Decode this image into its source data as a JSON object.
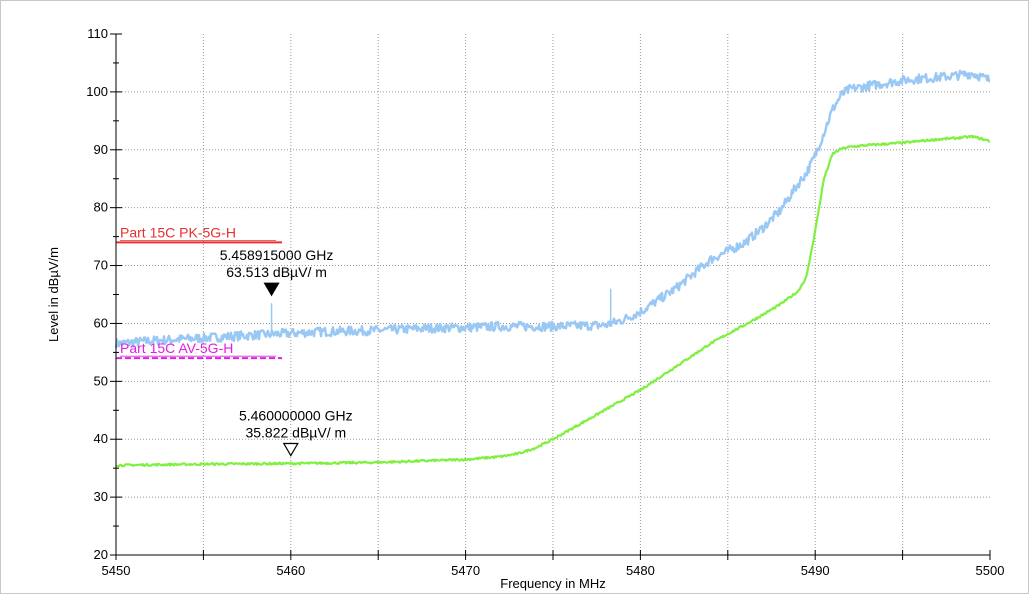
{
  "chart_data": {
    "type": "line",
    "xlabel": "Frequency in MHz",
    "ylabel": "Level in dBµV/m",
    "xlim": [
      5450,
      5500
    ],
    "ylim": [
      20,
      110
    ],
    "x_ticks": [
      5450,
      5455,
      5460,
      5465,
      5470,
      5475,
      5480,
      5485,
      5490,
      5495,
      5500
    ],
    "x_tick_labels": [
      "5450",
      "5460",
      "5470",
      "5480",
      "5490",
      "5500"
    ],
    "y_ticks": [
      20,
      30,
      40,
      50,
      60,
      70,
      80,
      90,
      100,
      110
    ],
    "grid": true,
    "series": [
      {
        "color": "#99c8f4",
        "style": "peak trace",
        "x": [
          5450,
          5452,
          5455,
          5458,
          5460,
          5462,
          5465,
          5468,
          5470,
          5472,
          5475,
          5478,
          5478.9,
          5480,
          5481,
          5482,
          5483,
          5484,
          5485,
          5486,
          5487,
          5488,
          5489,
          5489.5,
          5490,
          5490.5,
          5491,
          5491.5,
          5492,
          5493,
          5494,
          5495,
          5496,
          5497,
          5498,
          5499,
          5500
        ],
        "y": [
          56.5,
          57.0,
          57.5,
          58.0,
          58.3,
          58.6,
          58.8,
          59.2,
          59.3,
          59.5,
          59.5,
          59.7,
          60.5,
          62.0,
          64.0,
          66.0,
          68.5,
          71.0,
          72.5,
          74.0,
          76.5,
          79.5,
          84.0,
          86.0,
          89.0,
          93.0,
          97.0,
          99.5,
          100.5,
          101.0,
          101.5,
          102.0,
          102.3,
          102.5,
          102.8,
          103.2,
          102.0
        ],
        "spikes": [
          {
            "x": 5458.9,
            "y": 63.5
          },
          {
            "x": 5478.3,
            "y": 66.0
          }
        ]
      },
      {
        "color": "#80f040",
        "style": "average trace",
        "x": [
          5450,
          5455,
          5460,
          5465,
          5470,
          5472,
          5473,
          5474,
          5475,
          5476,
          5477,
          5478,
          5479,
          5480,
          5481,
          5482,
          5483,
          5484,
          5485,
          5486,
          5487,
          5488,
          5489,
          5489.5,
          5490,
          5490.5,
          5491,
          5491.5,
          5492,
          5493,
          5494,
          5495,
          5496,
          5497,
          5498,
          5499,
          5500
        ],
        "y": [
          35.5,
          35.7,
          35.8,
          36.0,
          36.5,
          37.0,
          37.5,
          38.5,
          40.0,
          41.7,
          43.4,
          45.1,
          46.8,
          48.5,
          50.5,
          52.5,
          54.5,
          56.5,
          58.2,
          59.8,
          61.5,
          63.3,
          65.5,
          68.0,
          76.0,
          85.0,
          89.3,
          90.2,
          90.5,
          90.8,
          91.0,
          91.2,
          91.5,
          91.8,
          92.0,
          92.3,
          91.5
        ]
      }
    ],
    "limit_lines": [
      {
        "label": "Part 15C PK-5G-H",
        "y": 74,
        "x_end": 5459.5,
        "color": "#e83030",
        "dash": false
      },
      {
        "label": "Part 15C AV-5G-H",
        "y": 54,
        "x_end": 5459.5,
        "color": "#e020e0",
        "dash": true
      }
    ],
    "markers": [
      {
        "freq": "5.458915000 GHz",
        "level": "63.513 dBµV/ m",
        "x": 5458.9,
        "y": 63.5,
        "filled": true
      },
      {
        "freq": "5.460000000 GHz",
        "level": "35.822 dBµV/ m",
        "x": 5460.0,
        "y": 35.8,
        "filled": false
      }
    ]
  }
}
